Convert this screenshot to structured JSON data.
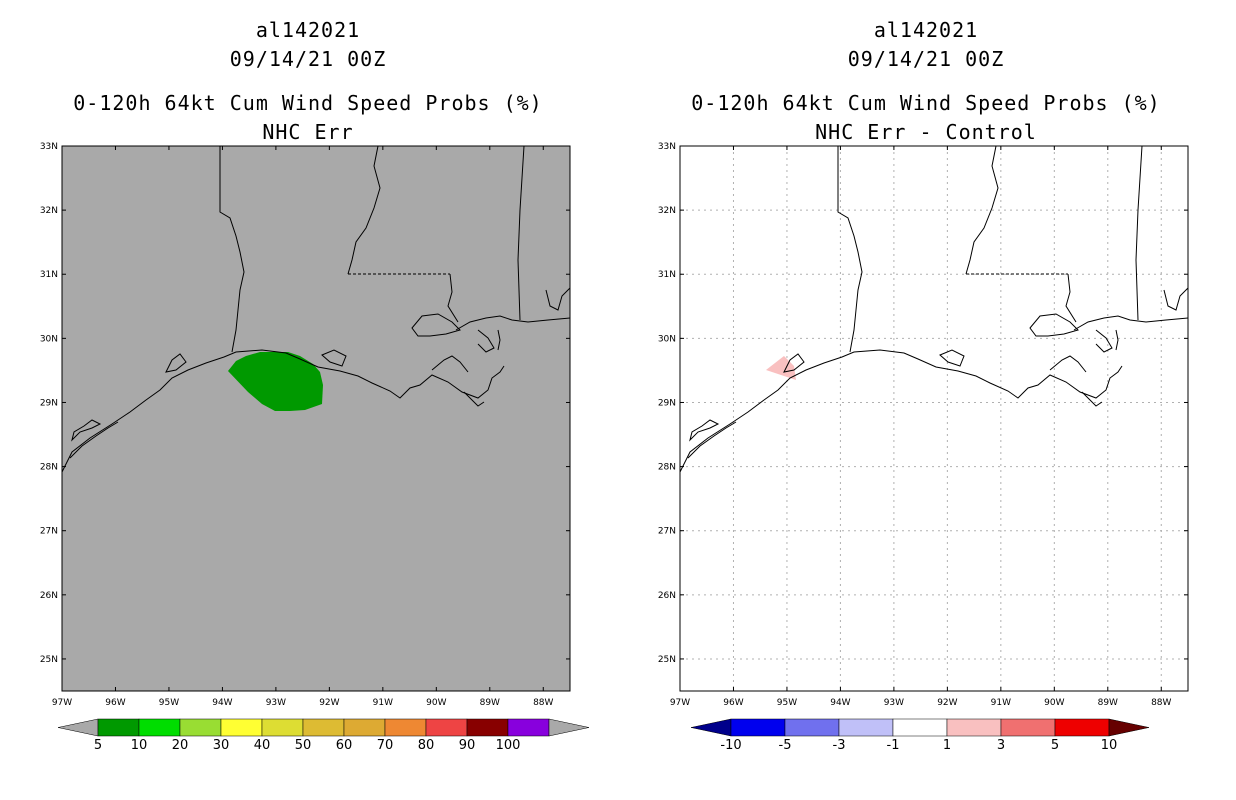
{
  "panels": [
    {
      "id": "left",
      "storm_id": "al142021",
      "datetime": "09/14/21 00Z",
      "product": "0-120h 64kt Cum Wind Speed Probs (%)",
      "subtitle": "NHC Err",
      "background": "#a9a9a9",
      "fill_color": "#009900",
      "colorbar": {
        "labels": [
          "5",
          "10",
          "20",
          "30",
          "40",
          "50",
          "60",
          "70",
          "80",
          "90",
          "100"
        ],
        "colors": [
          "#009900",
          "#00dd00",
          "#99dd33",
          "#ffff33",
          "#dddd33",
          "#ddbb33",
          "#ddaa33",
          "#ee8833",
          "#ee4444",
          "#880000",
          "#8800dd"
        ],
        "below_color": "#a9a9a9",
        "above_color": "#a9a9a9"
      }
    },
    {
      "id": "right",
      "storm_id": "al142021",
      "datetime": "09/14/21 00Z",
      "product": "0-120h 64kt Cum Wind Speed Probs (%)",
      "subtitle": "NHC Err - Control",
      "background": "#ffffff",
      "fill_color": "#f9c0c0",
      "colorbar": {
        "labels": [
          "-10",
          "-5",
          "-3",
          "-1",
          "1",
          "3",
          "5",
          "10"
        ],
        "colors": [
          "#0000ee",
          "#7070ee",
          "#c0c0f8",
          "#ffffff",
          "#f9c0c0",
          "#f07070",
          "#ee0000"
        ],
        "below_color": "#00008b",
        "above_color": "#660000"
      }
    }
  ],
  "axes": {
    "lon_labels": [
      "97W",
      "96W",
      "95W",
      "94W",
      "93W",
      "92W",
      "91W",
      "90W",
      "89W",
      "88W"
    ],
    "lat_labels": [
      "25N",
      "26N",
      "27N",
      "28N",
      "29N",
      "30N",
      "31N",
      "32N",
      "33N"
    ],
    "lon_range": [
      -97,
      -87.5
    ],
    "lat_range": [
      24.5,
      33
    ]
  }
}
